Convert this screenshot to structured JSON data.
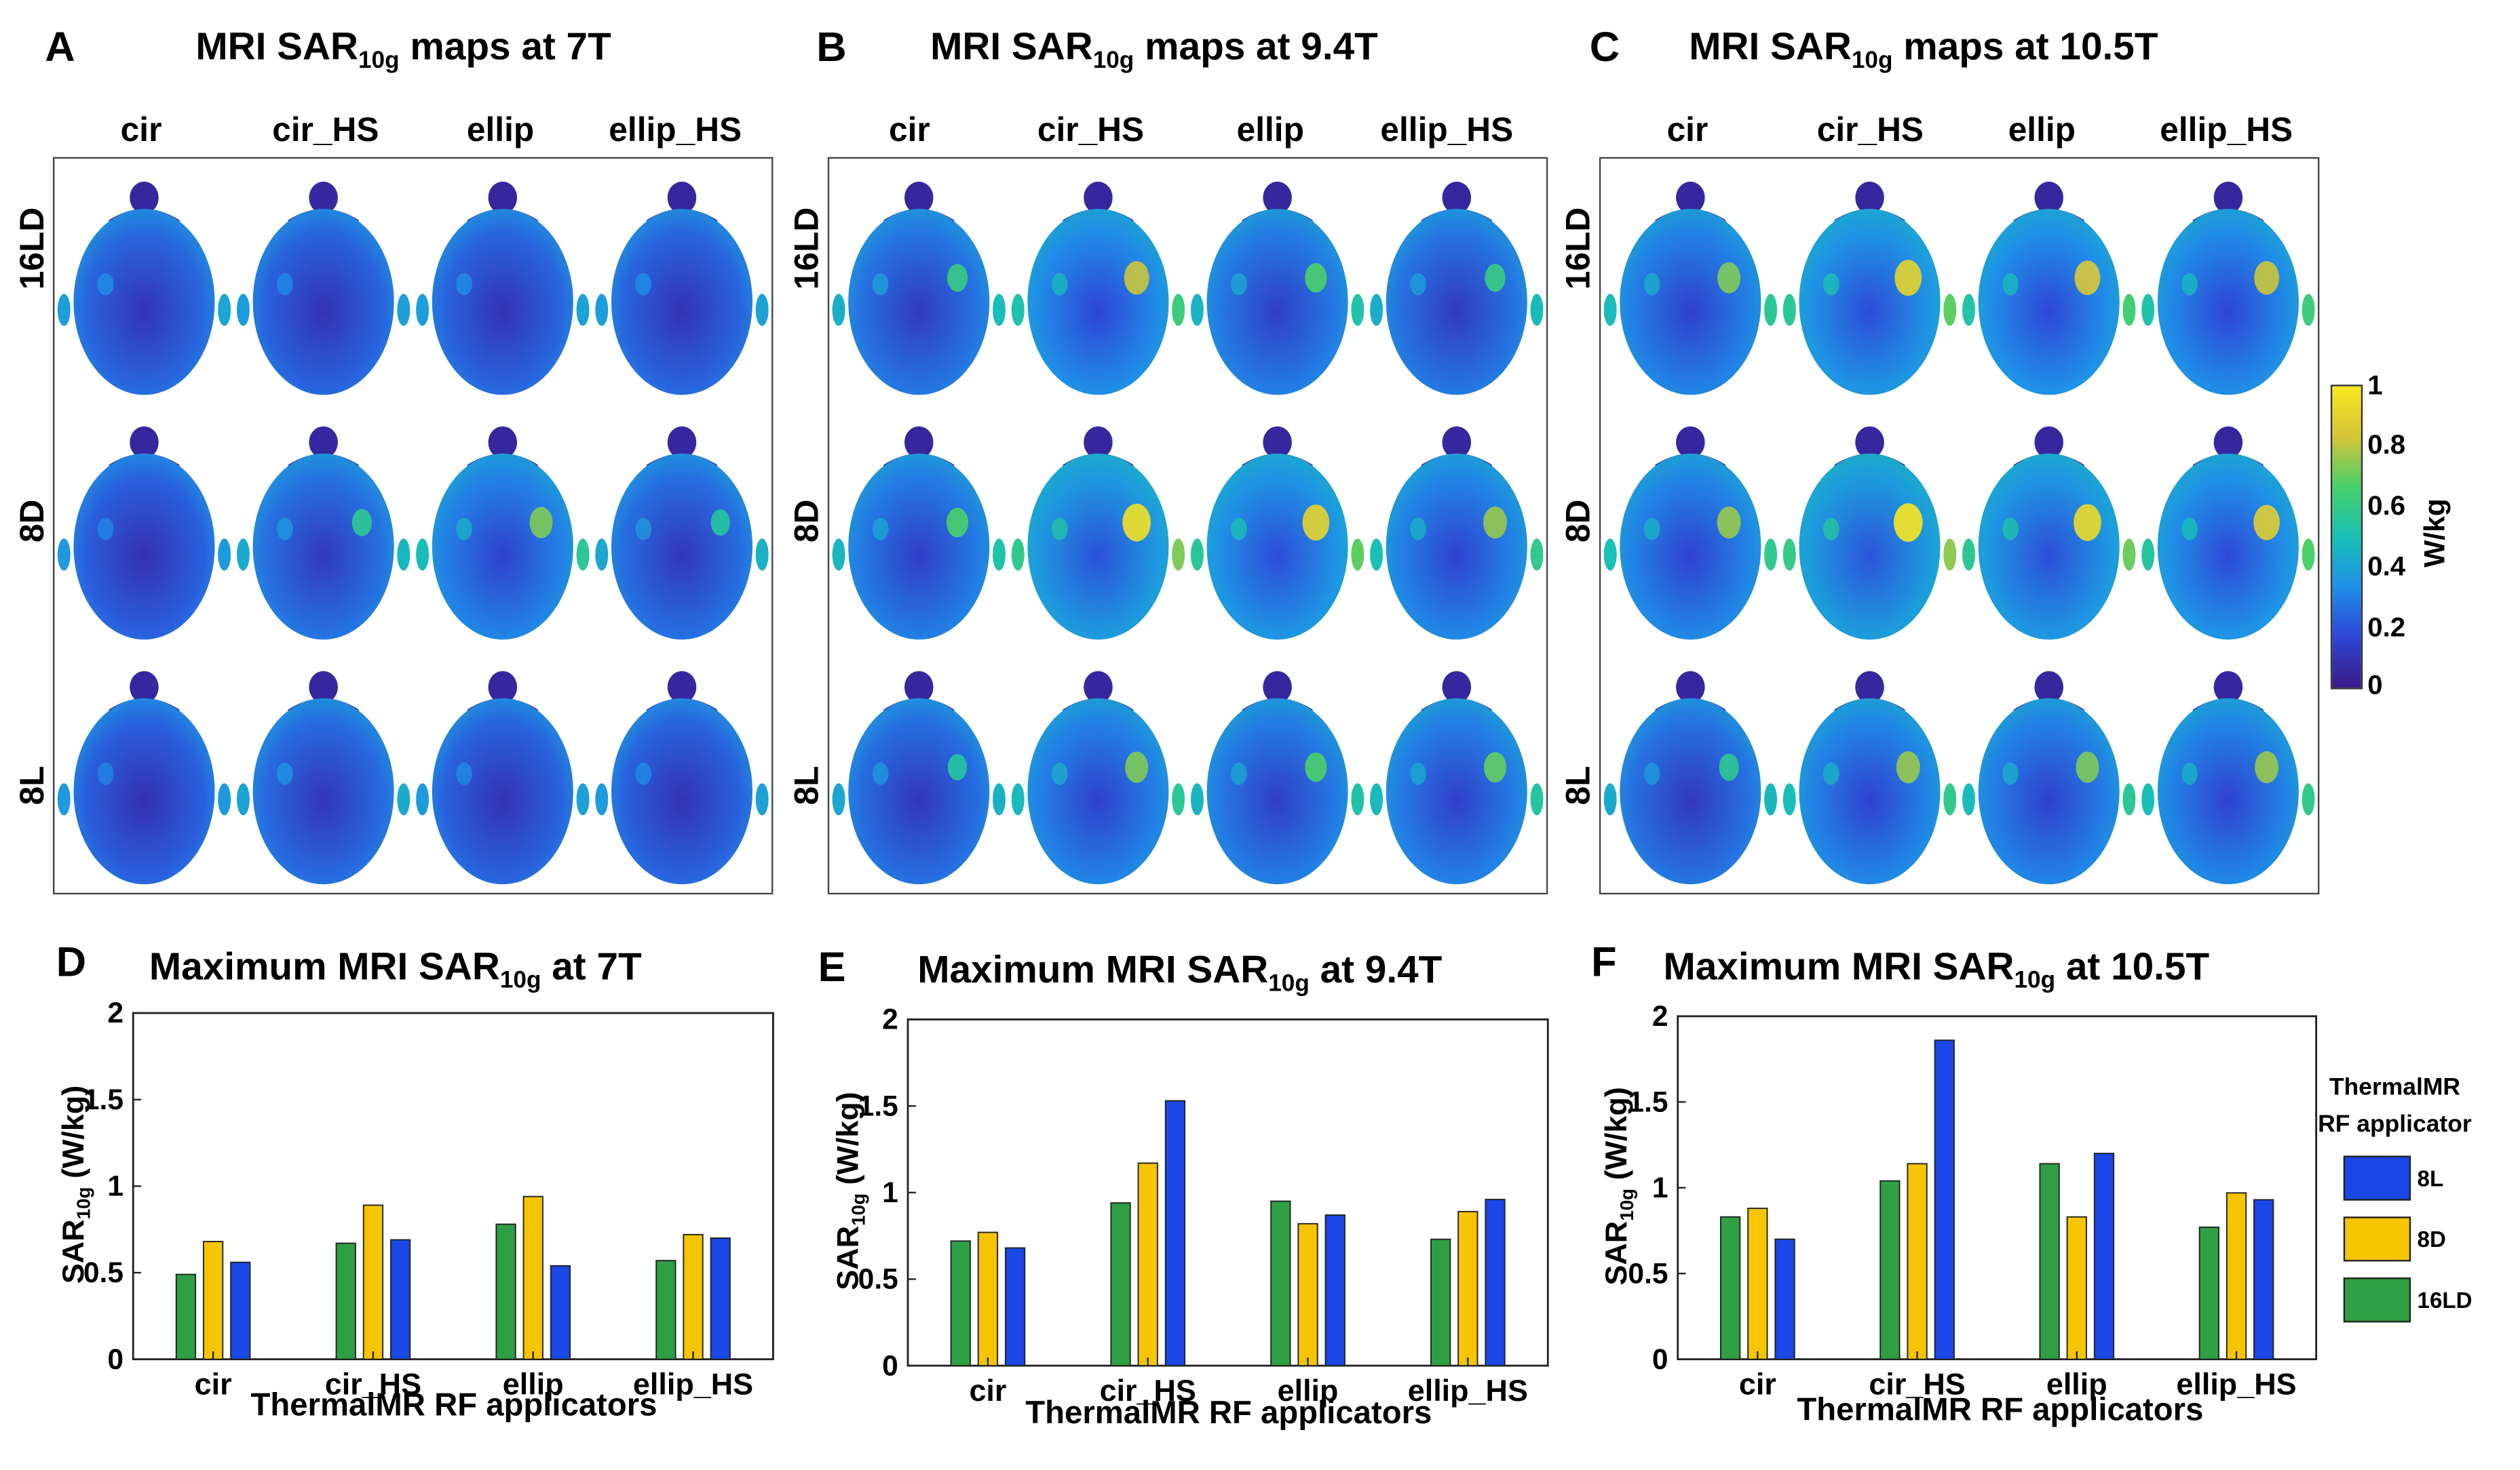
{
  "colors": {
    "l8": "#1a47e6",
    "d8": "#f5c500",
    "ld16": "#2ea043",
    "frame": "#444444"
  },
  "maps": {
    "columns": [
      "cir",
      "cir_HS",
      "ellip",
      "ellip_HS"
    ],
    "rows": [
      "16LD",
      "8D",
      "8L"
    ],
    "panels": [
      {
        "letter": "A",
        "title_pre": "MRI SAR",
        "title_sub": "10g",
        "title_post": " maps at 7T"
      },
      {
        "letter": "B",
        "title_pre": "MRI SAR",
        "title_sub": "10g",
        "title_post": " maps at 9.4T"
      },
      {
        "letter": "C",
        "title_pre": "MRI SAR",
        "title_sub": "10g",
        "title_post": " maps at 10.5T"
      }
    ],
    "hotspot_intensity": [
      [
        [
          0.15,
          0.1,
          0.12,
          0.12
        ],
        [
          0.05,
          0.3,
          0.55,
          0.25
        ],
        [
          0.05,
          0.2,
          0.1,
          0.1
        ]
      ],
      [
        [
          0.35,
          0.7,
          0.45,
          0.35
        ],
        [
          0.45,
          0.95,
          0.85,
          0.6
        ],
        [
          0.25,
          0.55,
          0.45,
          0.5
        ]
      ],
      [
        [
          0.55,
          0.85,
          0.75,
          0.7
        ],
        [
          0.6,
          1.0,
          0.9,
          0.8
        ],
        [
          0.3,
          0.6,
          0.55,
          0.6
        ]
      ]
    ]
  },
  "colorbar": {
    "ticks": [
      "1",
      "0.8",
      "0.6",
      "0.4",
      "0.2",
      "0"
    ],
    "unit": "W/kg",
    "stops": [
      "#3b1a87",
      "#2f45d6",
      "#1f8fe8",
      "#18c0b6",
      "#48d06a",
      "#d6c437",
      "#f9e721"
    ]
  },
  "chart_data": [
    {
      "type": "bar",
      "panel": "D",
      "title_pre": "Maximum MRI SAR",
      "title_sub": "10g",
      "title_post": " at 7T",
      "xlabel": "ThermalMR RF applicators",
      "ylabel_pre": "SAR",
      "ylabel_sub": "10g",
      "ylabel_post": " (W/kg)",
      "categories": [
        "cir",
        "cir_HS",
        "ellip",
        "ellip_HS"
      ],
      "ylim": [
        0,
        2
      ],
      "yticks": [
        "0",
        "0.5",
        "1",
        "1.5",
        "2"
      ],
      "series": [
        {
          "name": "16LD",
          "values": [
            0.49,
            0.67,
            0.78,
            0.57
          ]
        },
        {
          "name": "8D",
          "values": [
            0.68,
            0.89,
            0.94,
            0.72
          ]
        },
        {
          "name": "8L",
          "values": [
            0.56,
            0.69,
            0.54,
            0.7
          ]
        }
      ]
    },
    {
      "type": "bar",
      "panel": "E",
      "title_pre": "Maximum MRI SAR",
      "title_sub": "10g",
      "title_post": " at 9.4T",
      "xlabel": "ThermalMR RF applicators",
      "ylabel_pre": "SAR",
      "ylabel_sub": "10g",
      "ylabel_post": " (W/kg)",
      "categories": [
        "cir",
        "cir_HS",
        "ellip",
        "ellip_HS"
      ],
      "ylim": [
        0,
        2
      ],
      "yticks": [
        "0",
        "0.5",
        "1",
        "1.5",
        "2"
      ],
      "series": [
        {
          "name": "16LD",
          "values": [
            0.72,
            0.94,
            0.95,
            0.73
          ]
        },
        {
          "name": "8D",
          "values": [
            0.77,
            1.17,
            0.82,
            0.89
          ]
        },
        {
          "name": "8L",
          "values": [
            0.68,
            1.53,
            0.87,
            0.96
          ]
        }
      ]
    },
    {
      "type": "bar",
      "panel": "F",
      "title_pre": "Maximum MRI SAR",
      "title_sub": "10g",
      "title_post": " at 10.5T",
      "xlabel": "ThermalMR RF applicators",
      "ylabel_pre": "SAR",
      "ylabel_sub": "10g",
      "ylabel_post": " (W/kg)",
      "categories": [
        "cir",
        "cir_HS",
        "ellip",
        "ellip_HS"
      ],
      "ylim": [
        0,
        2
      ],
      "yticks": [
        "0",
        "0.5",
        "1",
        "1.5",
        "2"
      ],
      "series": [
        {
          "name": "16LD",
          "values": [
            0.83,
            1.04,
            1.14,
            0.77
          ]
        },
        {
          "name": "8D",
          "values": [
            0.88,
            1.14,
            0.83,
            0.97
          ]
        },
        {
          "name": "8L",
          "values": [
            0.7,
            1.86,
            1.2,
            0.93
          ]
        }
      ]
    }
  ],
  "legend": {
    "title_line1": "ThermalMR",
    "title_line2": "RF applicator",
    "items": [
      {
        "label": "8L",
        "color": "#1a47e6"
      },
      {
        "label": "8D",
        "color": "#f5c500"
      },
      {
        "label": "16LD",
        "color": "#2ea043"
      }
    ]
  }
}
